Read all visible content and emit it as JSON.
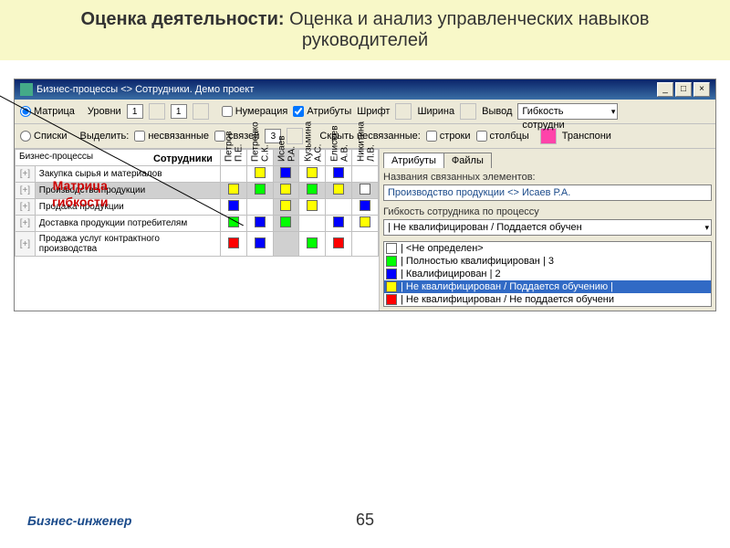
{
  "slide": {
    "title_bold": "Оценка деятельности:",
    "title_rest": " Оценка и анализ управленческих навыков руководителей",
    "brand": "Бизнес-инженер",
    "page": "65"
  },
  "window": {
    "title": "Бизнес-процессы <> Сотрудники. Демо проект",
    "controls": {
      "min": "_",
      "max": "□",
      "close": "×"
    }
  },
  "toolbar1": {
    "radio_matrix": "Матрица",
    "radio_lists": "Списки",
    "levels_label": "Уровни",
    "level1": "1",
    "level2": "1",
    "numbering": "Нумерация",
    "attributes": "Атрибуты",
    "font_label": "Шрифт",
    "width_label": "Ширина",
    "output_label": "Вывод",
    "output_value": "Гибкость сотрудни"
  },
  "toolbar2": {
    "select_label": "Выделить:",
    "unrelated": "несвязанные",
    "links": "связей",
    "links_val": "3",
    "hide_label": "Скрыть несвязанные:",
    "rows": "строки",
    "cols": "столбцы",
    "transpose": "Транспони"
  },
  "matrix": {
    "overlay": "Матрица\nгибкости",
    "corner_top": "Сотрудники",
    "corner_bot": "Бизнес-процессы",
    "cols": [
      {
        "label": "Петров П.Е."
      },
      {
        "label": "Петренко С.К."
      },
      {
        "label": "Исаев Р.А.",
        "hl": true
      },
      {
        "label": "Кузьмина А.С."
      },
      {
        "label": "Елисеев А.В."
      },
      {
        "label": "Никитина Л.В."
      }
    ],
    "rows": [
      {
        "label": "Закупка сырья и материалов",
        "cells": [
          "",
          "#ffff00",
          "#0000ff",
          "#ffff00",
          "#0000ff",
          ""
        ]
      },
      {
        "label": "Производство продукции",
        "hl": true,
        "cells": [
          "#ffff00",
          "#00ff00",
          "#ffff00",
          "#00ff00",
          "#ffff00",
          "#ffffff"
        ]
      },
      {
        "label": "Продажа продукции",
        "cells": [
          "#0000ff",
          "",
          "#ffff00",
          "#ffff00",
          "",
          "#0000ff"
        ]
      },
      {
        "label": "Доставка продукции потребителям",
        "cells": [
          "#00ff00",
          "#0000ff",
          "#00ff00",
          "",
          "#0000ff",
          "#ffff00"
        ]
      },
      {
        "label": "Продажа услуг контрактного производства",
        "cells": [
          "#ff0000",
          "#0000ff",
          "",
          "#00ff00",
          "#ff0000",
          ""
        ]
      }
    ]
  },
  "side": {
    "tabs": {
      "attr": "Атрибуты",
      "files": "Файлы"
    },
    "linked_label": "Названия связанных элементов:",
    "linked_value": "Производство продукции <> Исаев Р.А.",
    "flex_label": "Гибкость сотрудника по процессу",
    "flex_value": "| Не квалифицирован / Поддается обучен",
    "legend": [
      {
        "color": "#ffffff",
        "text": "| <Не определен>"
      },
      {
        "color": "#00ff00",
        "text": "| Полностью квалифицирован | 3"
      },
      {
        "color": "#0000ff",
        "text": "| Квалифицирован | 2"
      },
      {
        "color": "#ffff00",
        "text": "| Не квалифицирован / Поддается обучению |",
        "sel": true
      },
      {
        "color": "#ff0000",
        "text": "| Не квалифицирован / Не поддается обучени"
      }
    ]
  }
}
